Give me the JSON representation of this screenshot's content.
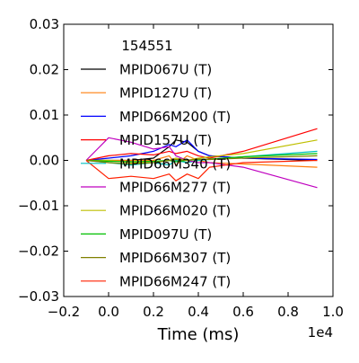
{
  "chart_data": {
    "type": "line",
    "xlabel": "Time (ms)",
    "ylabel": "",
    "x_offset_label": "1e4",
    "xlim": [
      -0.2,
      1.0
    ],
    "ylim": [
      -0.03,
      0.03
    ],
    "xticks": [
      "−0.2",
      "0.0",
      "0.2",
      "0.4",
      "0.6",
      "0.8",
      "1.0"
    ],
    "yticks": [
      "0.03",
      "0.02",
      "0.01",
      "0.00",
      "−0.01",
      "−0.02",
      "−0.03"
    ],
    "xtick_values": [
      -0.2,
      0.0,
      0.2,
      0.4,
      0.6,
      0.8,
      1.0
    ],
    "ytick_values": [
      0.03,
      0.02,
      0.01,
      0.0,
      -0.01,
      -0.02,
      -0.03
    ],
    "grid": false,
    "legend_title": "154551",
    "legend_position": "upper-left",
    "series": [
      {
        "name": "MPID067U (T)",
        "color": "#000000",
        "x": [
          -0.1,
          0.0,
          0.1,
          0.2,
          0.27,
          0.3,
          0.35,
          0.4,
          0.45,
          0.6,
          0.93
        ],
        "y": [
          0.0,
          0.0,
          0.0,
          0.0005,
          0.003,
          0.0045,
          0.004,
          0.002,
          0.001,
          0.0005,
          0.0
        ]
      },
      {
        "name": "MPID127U (T)",
        "color": "#ff7f0e",
        "x": [
          -0.1,
          0.0,
          0.1,
          0.2,
          0.27,
          0.3,
          0.35,
          0.4,
          0.45,
          0.6,
          0.93
        ],
        "y": [
          0.0,
          0.0,
          0.0,
          0.0,
          0.001,
          -0.001,
          0.001,
          0.0,
          -0.0005,
          -0.0008,
          -0.0015
        ]
      },
      {
        "name": "MPID66M200 (T)",
        "color": "#0000ff",
        "x": [
          -0.1,
          0.0,
          0.1,
          0.2,
          0.27,
          0.3,
          0.35,
          0.4,
          0.45,
          0.6,
          0.93
        ],
        "y": [
          0.0,
          0.0005,
          0.001,
          0.002,
          0.0035,
          0.003,
          0.0045,
          0.002,
          0.001,
          0.0005,
          0.0002
        ]
      },
      {
        "name": "MPID157U (T)",
        "color": "#ff0000",
        "x": [
          -0.1,
          0.0,
          0.1,
          0.2,
          0.27,
          0.3,
          0.35,
          0.4,
          0.45,
          0.6,
          0.93
        ],
        "y": [
          0.0,
          0.001,
          0.0015,
          0.0012,
          0.002,
          0.0015,
          0.002,
          0.001,
          0.0005,
          0.002,
          0.007
        ]
      },
      {
        "name": "MPID66M340 (T)",
        "color": "#00bfbf",
        "x": [
          -0.1,
          0.0,
          0.1,
          0.2,
          0.27,
          0.3,
          0.35,
          0.4,
          0.45,
          0.6,
          0.93
        ],
        "y": [
          0.0,
          -0.0005,
          -0.001,
          -0.0005,
          -0.001,
          0.0,
          -0.0005,
          0.0,
          0.0002,
          0.0008,
          0.002
        ]
      },
      {
        "name": "MPID66M277 (T)",
        "color": "#bf00bf",
        "x": [
          -0.1,
          0.0,
          0.1,
          0.2,
          0.27,
          0.3,
          0.35,
          0.4,
          0.45,
          0.6,
          0.93
        ],
        "y": [
          0.0,
          0.005,
          0.004,
          0.0025,
          0.003,
          0.001,
          0.0,
          -0.0005,
          -0.0005,
          -0.0015,
          -0.006
        ]
      },
      {
        "name": "MPID66M020 (T)",
        "color": "#bfbf00",
        "x": [
          -0.1,
          0.0,
          0.1,
          0.2,
          0.27,
          0.3,
          0.35,
          0.4,
          0.45,
          0.6,
          0.93
        ],
        "y": [
          0.0,
          0.0,
          -0.0005,
          -0.0005,
          0.0,
          0.0005,
          0.0,
          0.0005,
          0.0008,
          0.0015,
          0.0045
        ]
      },
      {
        "name": "MPID097U (T)",
        "color": "#00bf00",
        "x": [
          -0.1,
          0.0,
          0.1,
          0.2,
          0.27,
          0.3,
          0.35,
          0.4,
          0.45,
          0.6,
          0.93
        ],
        "y": [
          0.0,
          -0.0002,
          -0.0003,
          -0.0002,
          0.0,
          -0.0003,
          0.0,
          0.0002,
          0.0003,
          0.0008,
          0.0015
        ]
      },
      {
        "name": "MPID66M307 (T)",
        "color": "#808000",
        "x": [
          -0.1,
          0.0,
          0.1,
          0.2,
          0.27,
          0.3,
          0.35,
          0.4,
          0.45,
          0.6,
          0.93
        ],
        "y": [
          0.0,
          -0.0005,
          -0.0008,
          -0.0005,
          0.0,
          0.0002,
          0.0,
          0.0003,
          0.0002,
          0.0005,
          0.001
        ]
      },
      {
        "name": "MPID66M247 (T)",
        "color": "#ff2000",
        "x": [
          -0.1,
          0.0,
          0.1,
          0.2,
          0.27,
          0.3,
          0.35,
          0.4,
          0.45,
          0.6,
          0.93
        ],
        "y": [
          0.0,
          -0.004,
          -0.0035,
          -0.004,
          -0.003,
          -0.0045,
          -0.003,
          -0.004,
          -0.0015,
          -0.0005,
          0.0
        ]
      }
    ]
  }
}
